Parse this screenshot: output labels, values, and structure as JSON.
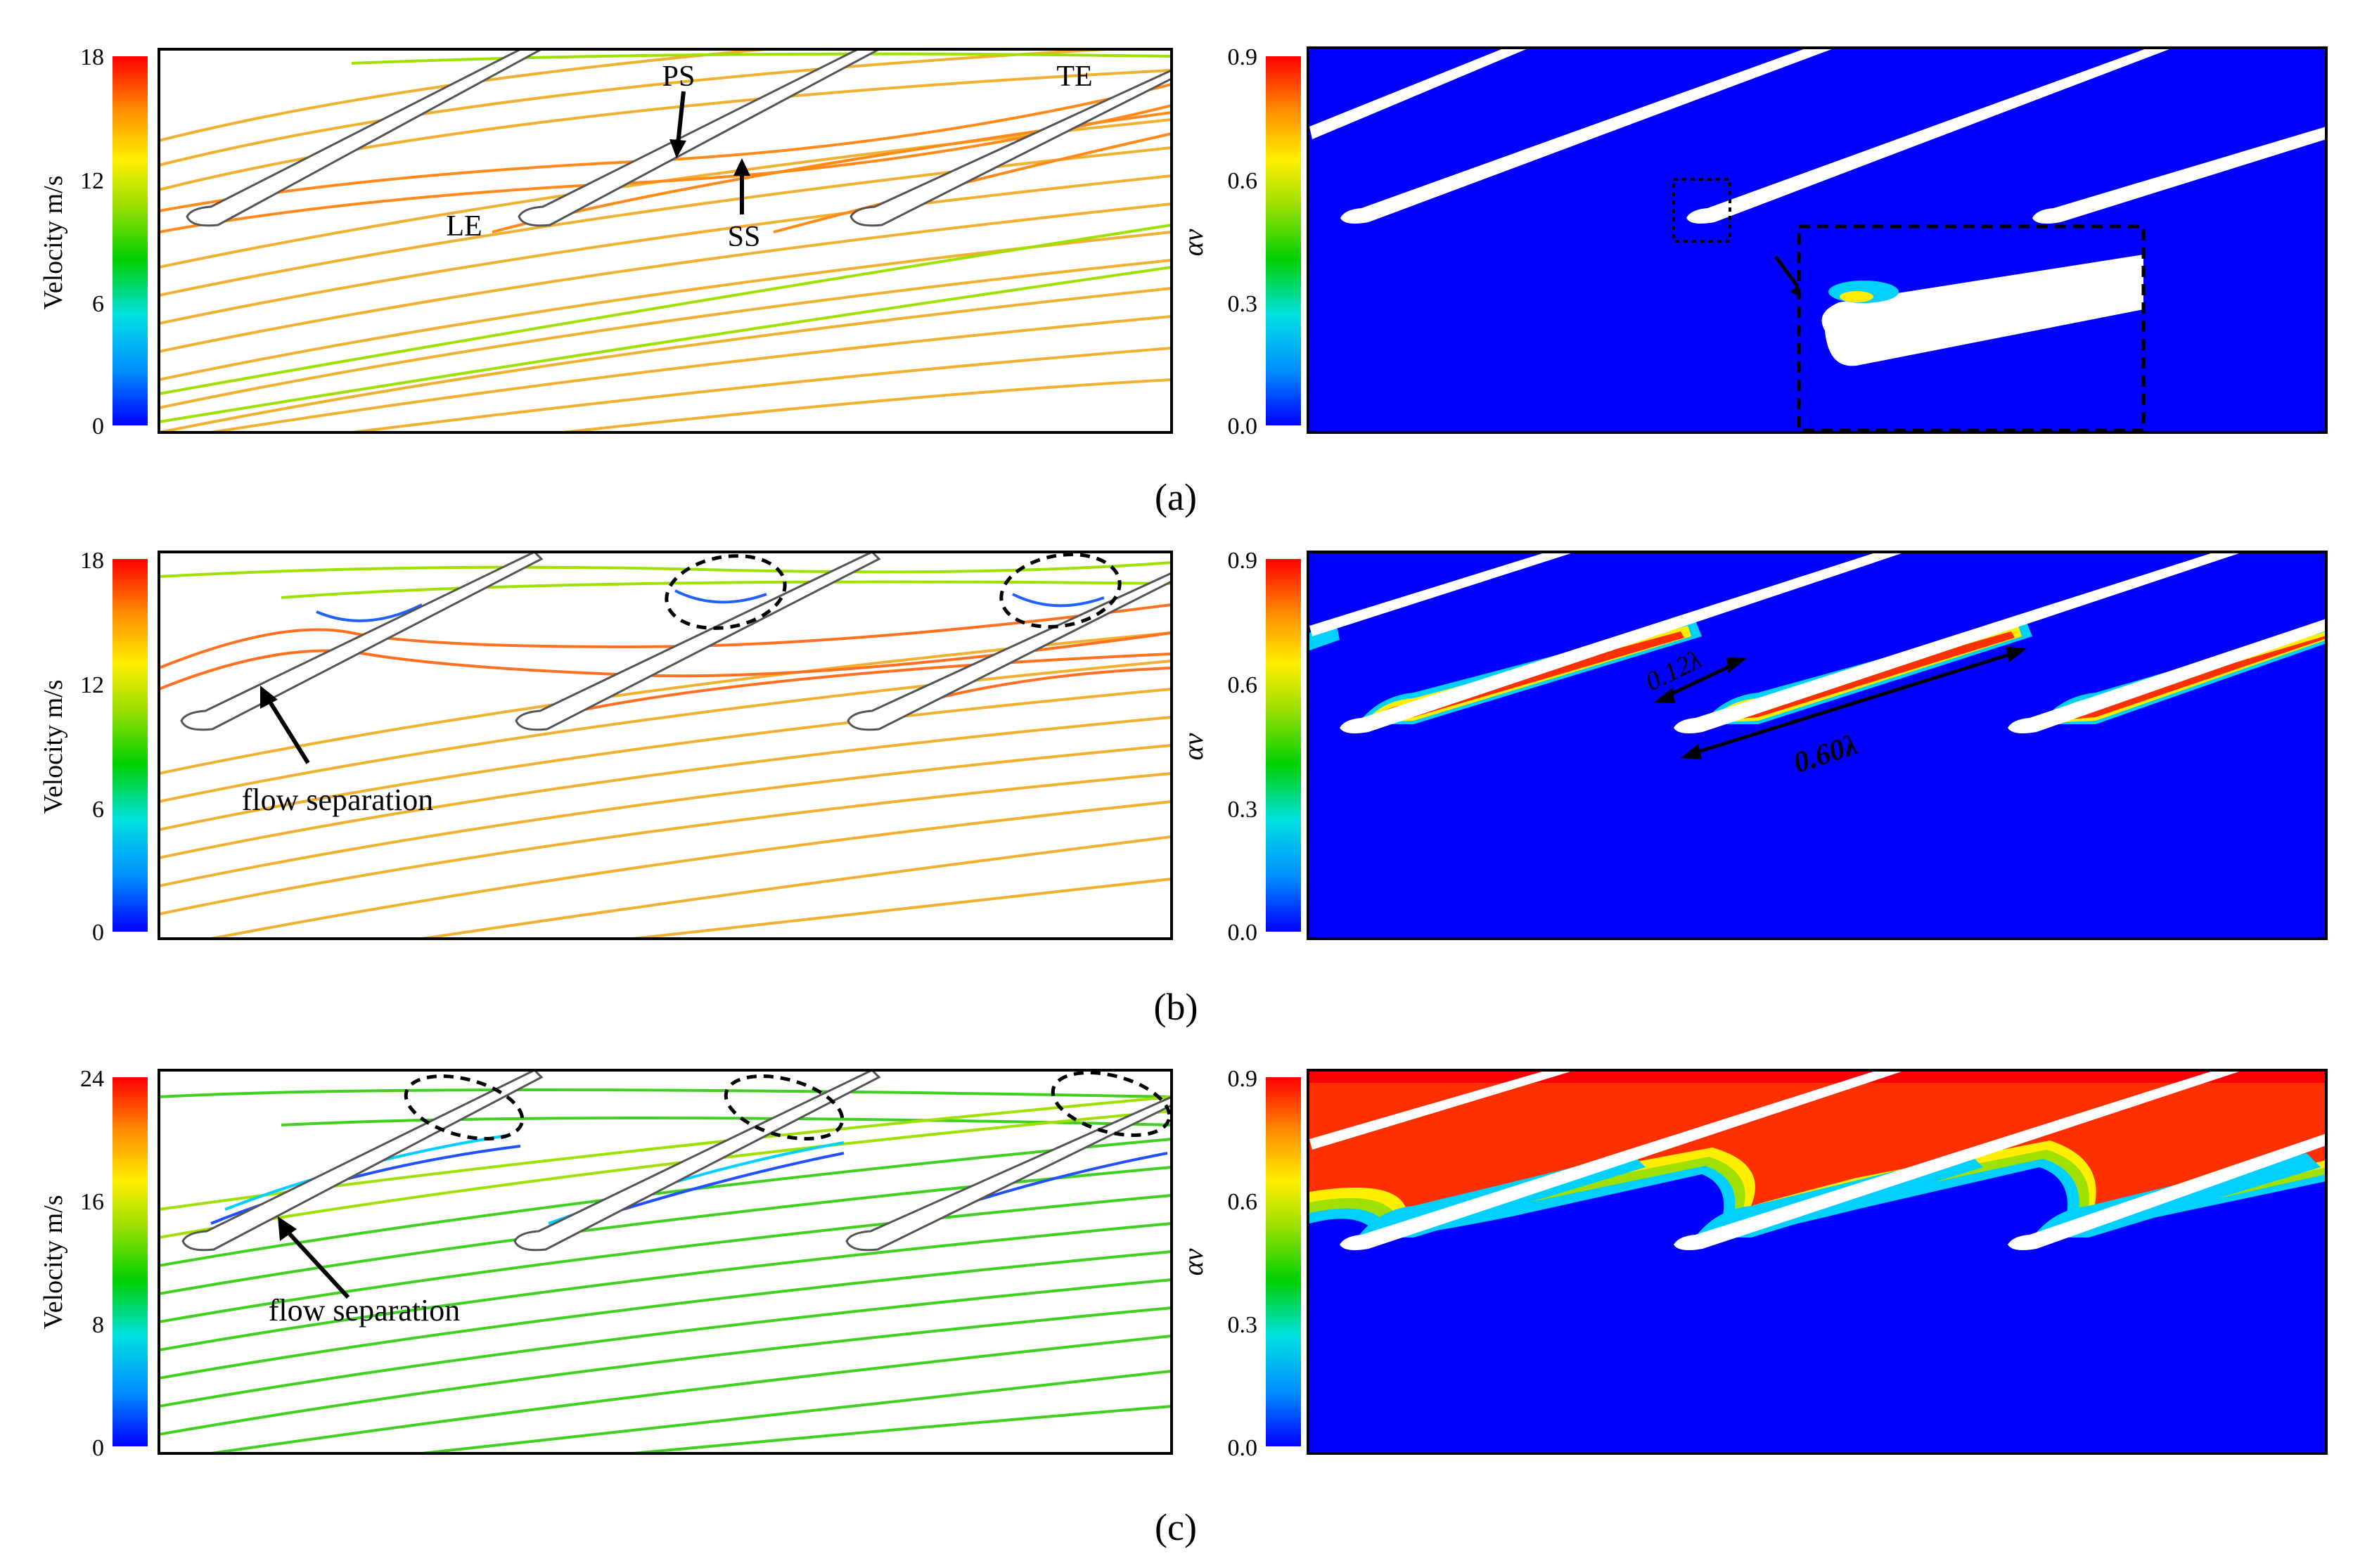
{
  "rows": [
    {
      "caption": "(a)",
      "velocity": {
        "axis_label": "Velocity m/s",
        "ticks": [
          "0",
          "6",
          "12",
          "18"
        ],
        "max": 18,
        "annotations": [
          "PS",
          "TE",
          "LE",
          "SS"
        ]
      },
      "alpha": {
        "axis_label": "αv",
        "ticks": [
          "0.0",
          "0.3",
          "0.6",
          "0.9"
        ]
      }
    },
    {
      "caption": "(b)",
      "velocity": {
        "axis_label": "Velocity m/s",
        "ticks": [
          "0",
          "6",
          "12",
          "18"
        ],
        "max": 18,
        "annotations": [
          "flow separation"
        ]
      },
      "alpha": {
        "axis_label": "αv",
        "ticks": [
          "0.0",
          "0.3",
          "0.6",
          "0.9"
        ],
        "annotations": [
          "0.12λ",
          "0.60λ"
        ]
      }
    },
    {
      "caption": "(c)",
      "velocity": {
        "axis_label": "Velocity m/s",
        "ticks": [
          "0",
          "8",
          "16",
          "24"
        ],
        "max": 24,
        "annotations": [
          "flow separation"
        ]
      },
      "alpha": {
        "axis_label": "αv",
        "ticks": [
          "0.0",
          "0.3",
          "0.6",
          "0.9"
        ]
      }
    }
  ],
  "colors": {
    "jet": [
      "#0000ff",
      "#00aaff",
      "#00e0e0",
      "#00d000",
      "#9ee000",
      "#ffee00",
      "#ffa000",
      "#ff4000",
      "#ff0000"
    ],
    "stream_a": "#f0a020",
    "stream_c": "#40d020",
    "liquid": "#0000ff",
    "blade": "#ffffff"
  }
}
